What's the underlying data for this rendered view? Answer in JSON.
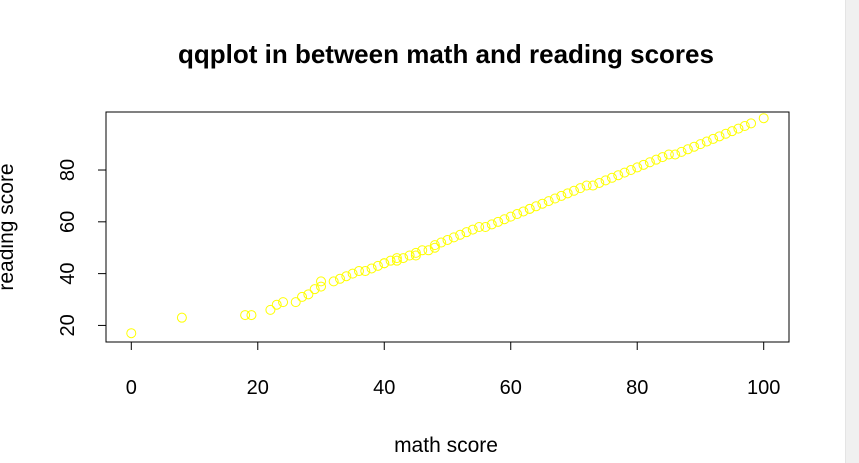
{
  "chart_data": {
    "type": "scatter",
    "title": "qqplot in between math and reading scores",
    "xlabel": "math score",
    "ylabel": "reading score",
    "xlim": [
      -4,
      104
    ],
    "ylim": [
      13.6,
      102.4
    ],
    "x_ticks": [
      0,
      20,
      40,
      60,
      80,
      100
    ],
    "y_ticks": [
      20,
      40,
      60,
      80
    ],
    "x_tick_labels": [
      "0",
      "20",
      "40",
      "60",
      "80",
      "100"
    ],
    "y_tick_labels": [
      "20",
      "40",
      "60",
      "80"
    ],
    "grid": false,
    "legend": "none",
    "marker": "open-circle",
    "point_color": "#ffff00",
    "x": [
      0,
      8,
      18,
      19,
      22,
      23,
      24,
      26,
      27,
      28,
      29,
      30,
      30,
      32,
      33,
      34,
      35,
      36,
      37,
      38,
      39,
      40,
      40,
      41,
      42,
      42,
      43,
      44,
      45,
      45,
      46,
      47,
      48,
      48,
      49,
      50,
      51,
      52,
      53,
      54,
      55,
      56,
      57,
      58,
      59,
      60,
      61,
      62,
      63,
      63,
      64,
      65,
      66,
      67,
      68,
      69,
      70,
      71,
      72,
      73,
      74,
      75,
      76,
      77,
      78,
      79,
      80,
      81,
      82,
      83,
      84,
      85,
      86,
      87,
      88,
      89,
      90,
      91,
      92,
      93,
      94,
      95,
      96,
      97,
      98,
      100
    ],
    "y": [
      17,
      23,
      24,
      24,
      26,
      28,
      29,
      29,
      31,
      32,
      34,
      35,
      37,
      37,
      38,
      39,
      40,
      41,
      41,
      42,
      43,
      44,
      44,
      45,
      45,
      46,
      46,
      47,
      47,
      48,
      49,
      49,
      50,
      51,
      52,
      53,
      54,
      55,
      56,
      57,
      58,
      58,
      59,
      60,
      61,
      62,
      63,
      64,
      65,
      65,
      66,
      67,
      68,
      69,
      70,
      71,
      72,
      73,
      74,
      74,
      75,
      76,
      77,
      78,
      79,
      80,
      81,
      82,
      83,
      84,
      85,
      86,
      86,
      87,
      88,
      89,
      90,
      91,
      92,
      93,
      94,
      95,
      96,
      97,
      98,
      100
    ]
  }
}
